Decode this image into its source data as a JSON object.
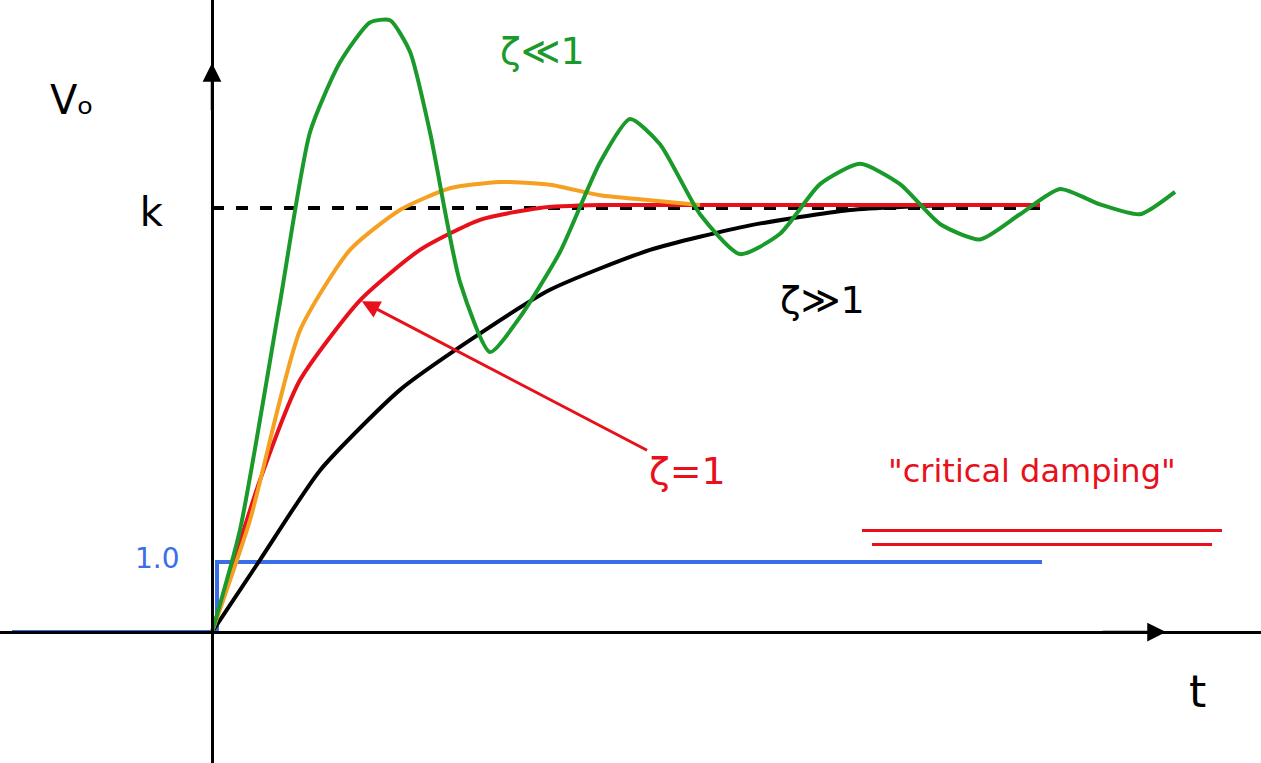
{
  "chart_data": {
    "type": "line",
    "x_label": "t",
    "y_label": "Vₒ",
    "xlim": [
      -2.12,
      10.49
    ],
    "ylim": [
      -1.87,
      9.03
    ],
    "xticks": [],
    "yticks": [
      {
        "value": 6,
        "label": "k"
      }
    ],
    "grid": false,
    "tick_labels": "y",
    "series": [
      {
        "color": "#3a6ee8",
        "line_style": "solid",
        "x": [
          -2.0,
          0.05,
          0.05,
          8.3
        ],
        "values": [
          0,
          0,
          1.0,
          1.0
        ]
      },
      {
        "color": "#000000",
        "line_style": "dash",
        "x": [
          0,
          8.3
        ],
        "values": [
          6.06,
          6.06
        ]
      },
      {
        "color": "#000000",
        "line_style": "solid",
        "x": [
          0,
          0.48,
          1.08,
          1.88,
          2.58,
          3.38,
          4.38,
          5.38,
          6.38,
          7.38,
          8.28
        ],
        "values": [
          0,
          1.03,
          2.31,
          3.46,
          4.17,
          4.89,
          5.46,
          5.81,
          6.03,
          6.1,
          6.1
        ]
      },
      {
        "color": "#e8101a",
        "line_style": "solid",
        "x": [
          0,
          0.48,
          0.88,
          1.48,
          2.08,
          2.68,
          3.28,
          3.88,
          4.88,
          8.28
        ],
        "values": [
          0,
          2.17,
          3.6,
          4.74,
          5.46,
          5.89,
          6.06,
          6.1,
          6.1,
          6.1
        ]
      },
      {
        "color": "#f5a020",
        "line_style": "solid",
        "x": [
          0,
          0.38,
          0.88,
          1.38,
          1.88,
          2.38,
          2.88,
          3.38,
          3.88,
          4.38,
          4.88
        ],
        "values": [
          0,
          1.6,
          4.31,
          5.46,
          6.03,
          6.34,
          6.43,
          6.39,
          6.24,
          6.17,
          6.1
        ]
      },
      {
        "color": "#1a9a2a",
        "line_style": "solid",
        "x": [
          0,
          0.28,
          0.68,
          0.98,
          1.28,
          1.58,
          1.78,
          1.98,
          2.18,
          2.48,
          2.78,
          3.08,
          3.48,
          3.88,
          4.18,
          4.48,
          4.88,
          5.28,
          5.68,
          6.08,
          6.48,
          6.88,
          7.28,
          7.68,
          8.08,
          8.48,
          8.88,
          9.28,
          9.63
        ],
        "values": [
          0,
          1.46,
          4.71,
          7.14,
          8.14,
          8.71,
          8.74,
          8.29,
          7.14,
          5.0,
          4.0,
          4.5,
          5.43,
          6.71,
          7.33,
          6.97,
          5.97,
          5.4,
          5.69,
          6.4,
          6.69,
          6.4,
          5.83,
          5.61,
          5.97,
          6.33,
          6.11,
          5.97,
          6.29
        ]
      }
    ],
    "annotations": [
      {
        "text": "1.0",
        "color": "#3a6ee8"
      },
      {
        "text": "ζ≪1",
        "color": "#1a9a2a"
      },
      {
        "text": "ζ≫1",
        "color": "#000000"
      },
      {
        "text": "ζ=1",
        "color": "#e8101a"
      },
      {
        "text": "\"critical damping\"",
        "color": "#e8101a"
      }
    ]
  }
}
